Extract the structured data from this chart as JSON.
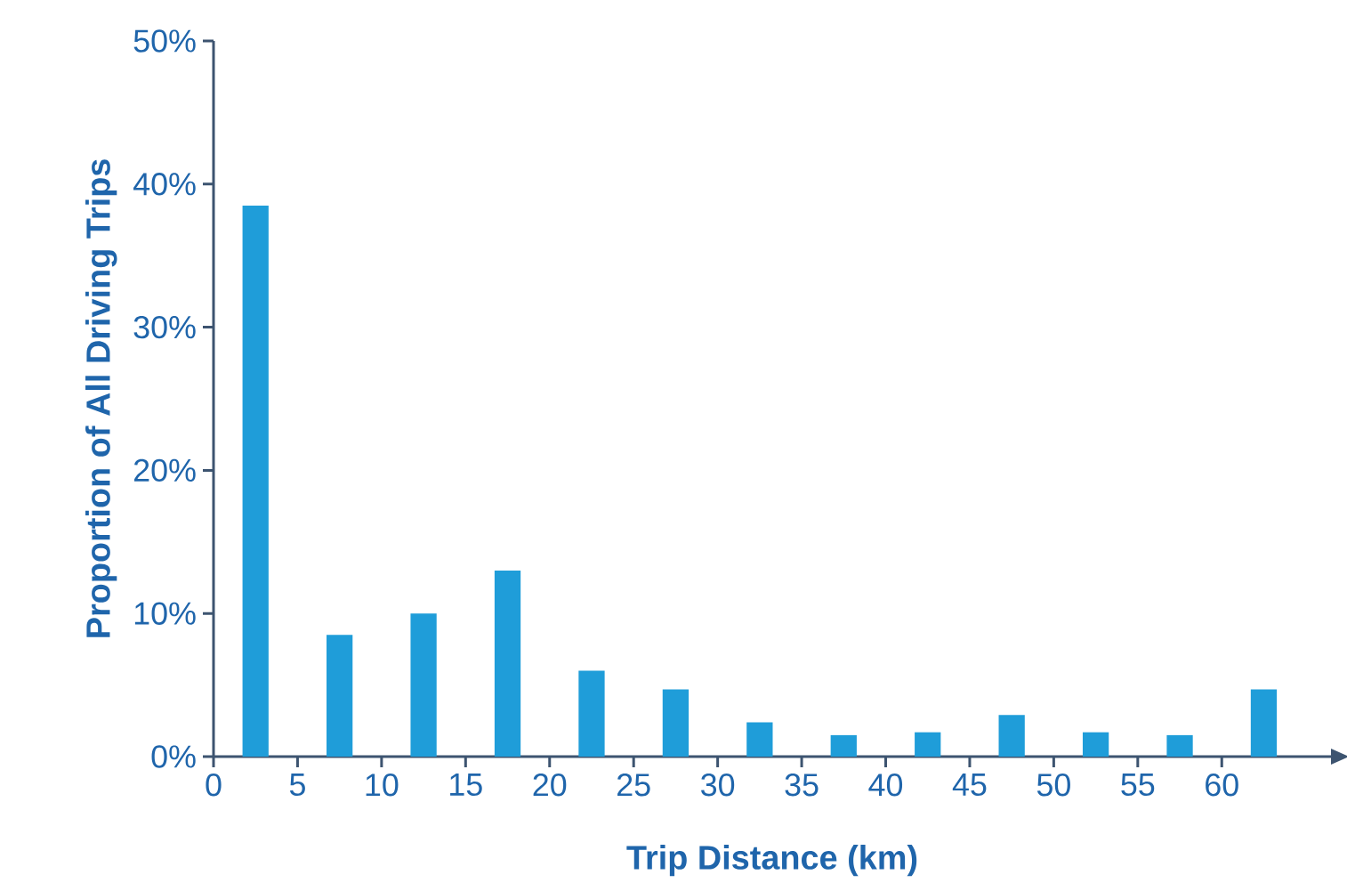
{
  "chart_data": {
    "type": "bar",
    "xlabel": "Trip Distance (km)",
    "ylabel": "Proportion of All Driving Trips",
    "x": [
      2.5,
      7.5,
      12.5,
      17.5,
      22.5,
      27.5,
      32.5,
      37.5,
      42.5,
      47.5,
      52.5,
      57.5,
      62.5
    ],
    "values": [
      38.5,
      8.5,
      10,
      13,
      6,
      4.7,
      2.4,
      1.5,
      1.7,
      2.9,
      1.7,
      1.5,
      4.7
    ],
    "color": "#1f9dd9",
    "xlim": [
      0,
      66.5
    ],
    "xticks": [
      0,
      5,
      10,
      15,
      20,
      25,
      30,
      35,
      40,
      45,
      50,
      55,
      60
    ],
    "ylim": [
      0,
      50
    ],
    "yticks": [
      {
        "value": 0,
        "label": "0%"
      },
      {
        "value": 10,
        "label": "10%"
      },
      {
        "value": 20,
        "label": "20%"
      },
      {
        "value": 30,
        "label": "30%"
      },
      {
        "value": 40,
        "label": "40%"
      },
      {
        "value": 50,
        "label": "50%"
      }
    ]
  }
}
